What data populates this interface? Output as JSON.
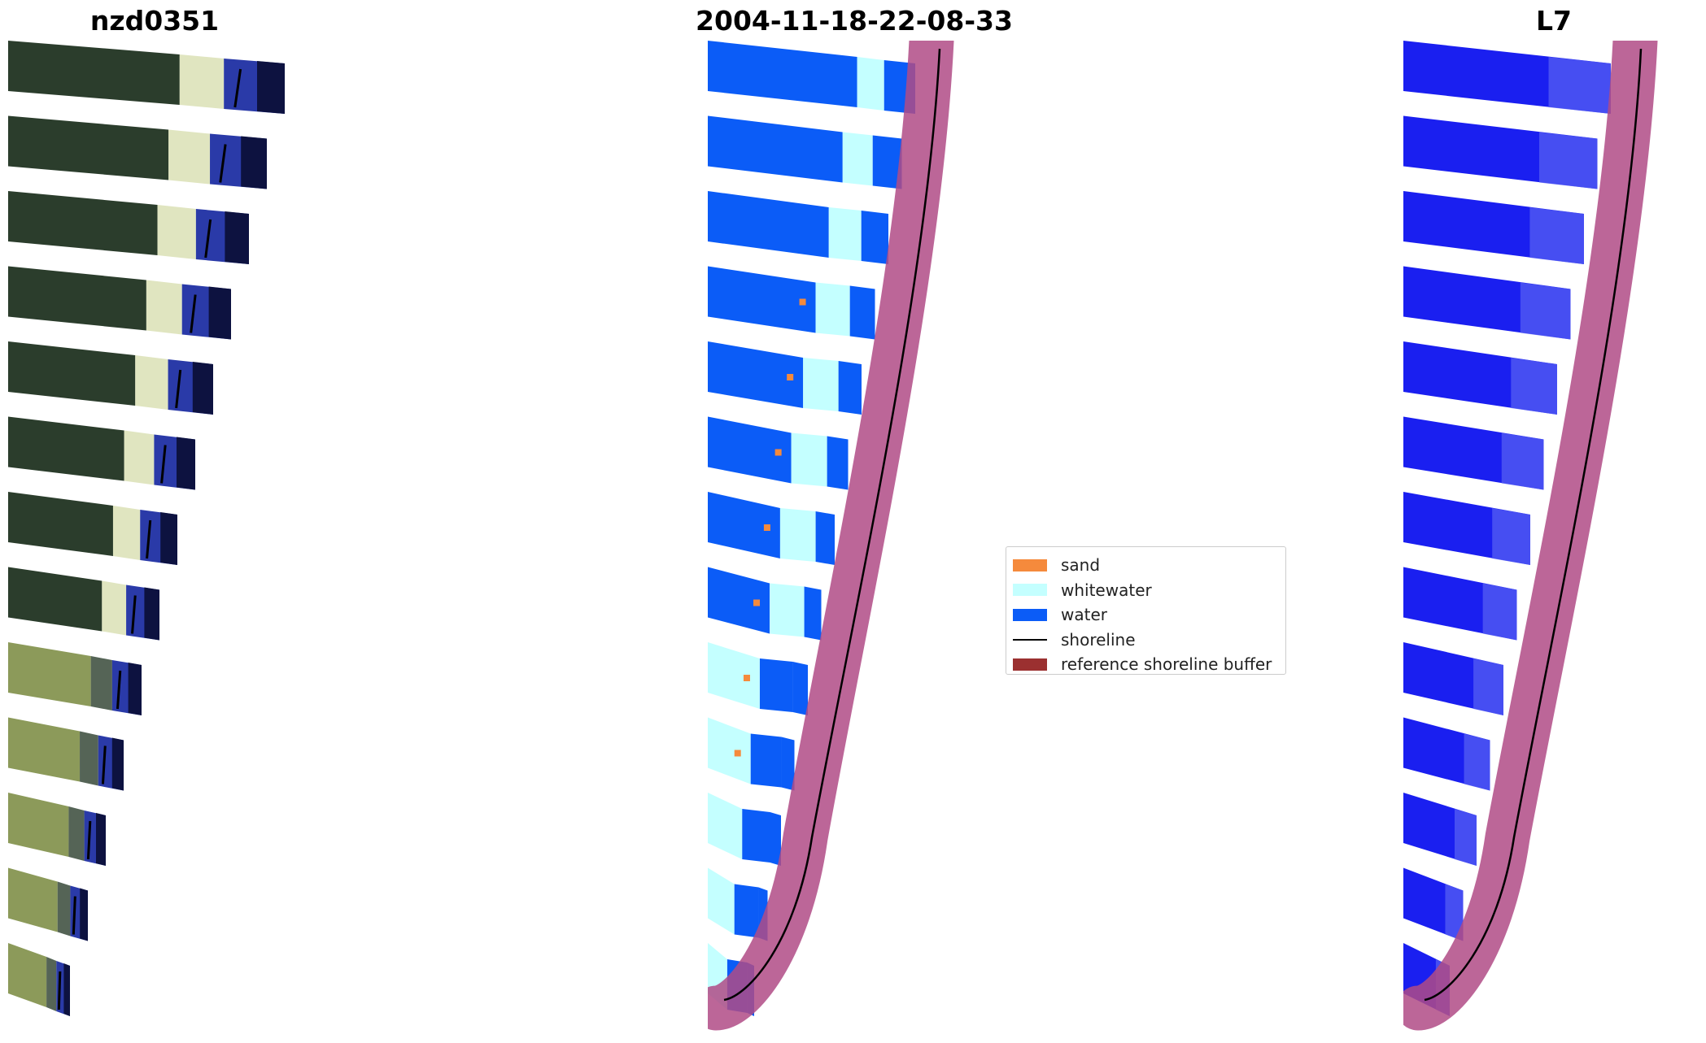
{
  "titles": {
    "left": "nzd0351",
    "center": "2004-11-18-22-08-33",
    "right": "L7"
  },
  "legend": {
    "items": [
      {
        "label": "sand",
        "color": "#f58a3c"
      },
      {
        "label": "whitewater",
        "color": "#c4ffff"
      },
      {
        "label": "water",
        "color": "#0b5cf7"
      },
      {
        "label": "shoreline",
        "color": "#000000"
      },
      {
        "label": "reference shoreline buffer",
        "color": "#9b3030"
      }
    ]
  },
  "colors": {
    "rgb_dark": "#2b3d2c",
    "rgb_sand": "#8c9a5a",
    "rgb_water": "#2a3aa8",
    "rgb_deep": "#0d1240",
    "buffer": "#b04b86",
    "l7_water": "#1a1ff0"
  }
}
